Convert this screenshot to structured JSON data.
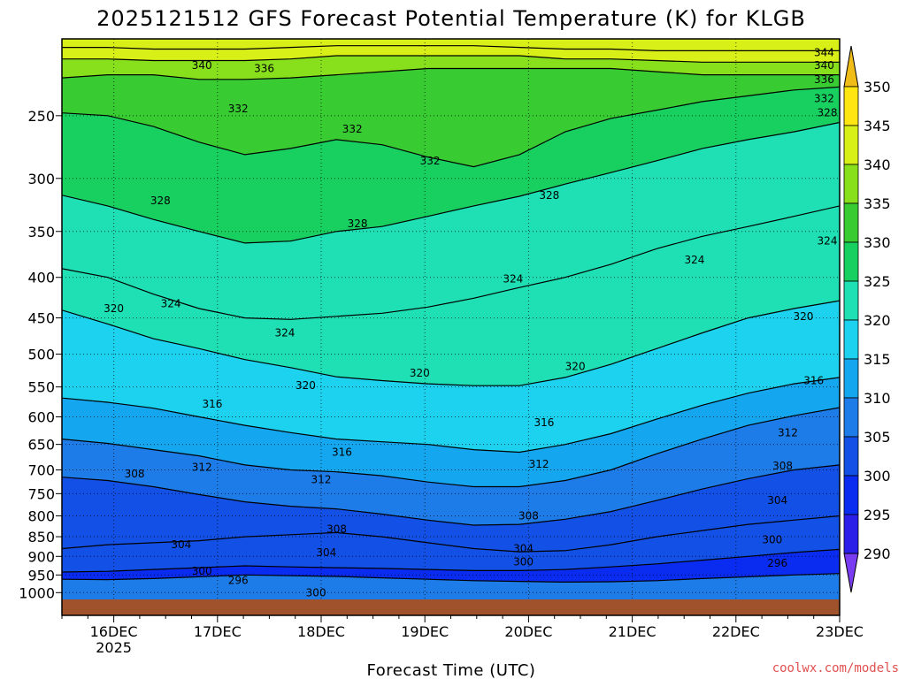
{
  "chart_data": {
    "type": "heatmap",
    "title": "2025121512 GFS Forecast Potential Temperature (K) for KLGB",
    "xlabel": "Forecast Time (UTC)",
    "ylabel": "",
    "x_ticks": [
      "16DEC",
      "17DEC",
      "18DEC",
      "19DEC",
      "20DEC",
      "21DEC",
      "22DEC",
      "23DEC"
    ],
    "x_year_label": "2025",
    "y_ticks": [
      250,
      300,
      350,
      400,
      450,
      500,
      550,
      600,
      650,
      700,
      750,
      800,
      850,
      900,
      950,
      1000
    ],
    "y_scale": "log-pressure",
    "y_range_hPa": [
      1020,
      200
    ],
    "x_range_days": [
      "15DEC 12Z",
      "23DEC 00Z"
    ],
    "grid": "dotted",
    "colorbar": {
      "levels": [
        290,
        295,
        300,
        305,
        310,
        315,
        320,
        325,
        330,
        335,
        340,
        345,
        350
      ],
      "labels": [
        "290",
        "295",
        "300",
        "305",
        "310",
        "315",
        "320",
        "325",
        "330",
        "335",
        "340",
        "345",
        "350"
      ],
      "colors": [
        "#7a3cf0",
        "#2a1ee8",
        "#0a2cf0",
        "#1350e6",
        "#1e7ce8",
        "#14a6ee",
        "#1cd2ee",
        "#1ee0b4",
        "#18d060",
        "#38cc32",
        "#88e01c",
        "#d8f018",
        "#ffe612",
        "#f0bc18"
      ]
    },
    "series": [
      {
        "level": 296,
        "values": [
          962,
          963,
          960,
          955,
          950,
          952,
          954,
          958,
          962,
          966,
          968,
          970,
          969,
          966,
          960,
          955,
          950,
          946
        ]
      },
      {
        "level": 300,
        "values": [
          942,
          940,
          935,
          930,
          925,
          928,
          930,
          932,
          935,
          938,
          938,
          935,
          928,
          920,
          910,
          900,
          890,
          882
        ]
      },
      {
        "level": 304,
        "values": [
          880,
          870,
          865,
          860,
          850,
          845,
          840,
          850,
          865,
          880,
          888,
          885,
          870,
          850,
          835,
          820,
          810,
          800
        ]
      },
      {
        "level": 308,
        "values": [
          715,
          722,
          735,
          752,
          768,
          778,
          784,
          796,
          810,
          822,
          820,
          808,
          790,
          765,
          740,
          718,
          700,
          690
        ]
      },
      {
        "level": 312,
        "values": [
          640,
          648,
          660,
          672,
          690,
          700,
          704,
          712,
          725,
          735,
          735,
          722,
          700,
          668,
          640,
          615,
          598,
          584
        ]
      },
      {
        "level": 316,
        "values": [
          568,
          575,
          585,
          600,
          615,
          628,
          640,
          645,
          650,
          660,
          665,
          650,
          630,
          604,
          580,
          560,
          545,
          535
        ]
      },
      {
        "level": 320,
        "values": [
          440,
          458,
          478,
          492,
          508,
          520,
          534,
          540,
          545,
          548,
          548,
          535,
          515,
          492,
          470,
          450,
          438,
          428
        ]
      },
      {
        "level": 324,
        "values": [
          390,
          400,
          420,
          438,
          450,
          452,
          448,
          444,
          436,
          425,
          412,
          400,
          385,
          368,
          355,
          345,
          335,
          325
        ]
      },
      {
        "level": 328,
        "values": [
          315,
          325,
          338,
          350,
          362,
          360,
          350,
          345,
          335,
          325,
          316,
          305,
          295,
          285,
          275,
          268,
          262,
          255
        ]
      },
      {
        "level": 332,
        "values": [
          248,
          250,
          258,
          270,
          280,
          275,
          268,
          272,
          282,
          290,
          280,
          262,
          252,
          246,
          240,
          236,
          232,
          230
        ]
      },
      {
        "level": 336,
        "values": [
          224,
          222,
          222,
          225,
          225,
          224,
          222,
          220,
          218,
          218,
          218,
          218,
          218,
          220,
          222,
          222,
          222,
          222
        ]
      },
      {
        "level": 340,
        "values": [
          212,
          212,
          213,
          213,
          213,
          212,
          210,
          210,
          210,
          210,
          210,
          212,
          212,
          213,
          214,
          214,
          214,
          214
        ]
      },
      {
        "level": 344,
        "values": [
          205,
          205,
          206,
          206,
          206,
          205,
          204,
          204,
          204,
          204,
          205,
          206,
          206,
          207,
          207,
          207,
          207,
          207
        ]
      }
    ],
    "contour_labels": [
      {
        "text": "340",
        "day": 0.85,
        "p": 216
      },
      {
        "text": "336",
        "day": 1.45,
        "p": 218
      },
      {
        "text": "332",
        "day": 1.2,
        "p": 245
      },
      {
        "text": "332",
        "day": 2.3,
        "p": 260
      },
      {
        "text": "332",
        "day": 3.05,
        "p": 285
      },
      {
        "text": "344",
        "day": 6.85,
        "p": 208
      },
      {
        "text": "340",
        "day": 6.85,
        "p": 216
      },
      {
        "text": "336",
        "day": 6.85,
        "p": 225
      },
      {
        "text": "332",
        "day": 6.85,
        "p": 238
      },
      {
        "text": "328",
        "day": 6.9,
        "p": 248
      },
      {
        "text": "328",
        "day": 0.45,
        "p": 320
      },
      {
        "text": "328",
        "day": 2.35,
        "p": 342
      },
      {
        "text": "328",
        "day": 4.2,
        "p": 315
      },
      {
        "text": "324",
        "day": 7.25,
        "p": 360
      },
      {
        "text": "324",
        "day": 5.6,
        "p": 380
      },
      {
        "text": "324",
        "day": 3.85,
        "p": 402
      },
      {
        "text": "324",
        "day": 0.55,
        "p": 432
      },
      {
        "text": "324",
        "day": 1.65,
        "p": 470
      },
      {
        "text": "320",
        "day": 0.0,
        "p": 438
      },
      {
        "text": "320",
        "day": 6.65,
        "p": 448
      },
      {
        "text": "320",
        "day": 4.45,
        "p": 518
      },
      {
        "text": "320",
        "day": 2.95,
        "p": 528
      },
      {
        "text": "320",
        "day": 1.85,
        "p": 548
      },
      {
        "text": "316",
        "day": 6.75,
        "p": 540
      },
      {
        "text": "316",
        "day": 0.95,
        "p": 578
      },
      {
        "text": "316",
        "day": 4.15,
        "p": 610
      },
      {
        "text": "316",
        "day": 2.2,
        "p": 665
      },
      {
        "text": "312",
        "day": 6.5,
        "p": 628
      },
      {
        "text": "312",
        "day": 0.85,
        "p": 695
      },
      {
        "text": "312",
        "day": 4.1,
        "p": 688
      },
      {
        "text": "312",
        "day": 2.0,
        "p": 720
      },
      {
        "text": "308",
        "day": 6.45,
        "p": 692
      },
      {
        "text": "308",
        "day": 0.2,
        "p": 708
      },
      {
        "text": "308",
        "day": 4.0,
        "p": 800
      },
      {
        "text": "308",
        "day": 2.15,
        "p": 832
      },
      {
        "text": "304",
        "day": 6.4,
        "p": 765
      },
      {
        "text": "304",
        "day": 0.65,
        "p": 870
      },
      {
        "text": "304",
        "day": 3.95,
        "p": 880
      },
      {
        "text": "304",
        "day": 2.05,
        "p": 890
      },
      {
        "text": "300",
        "day": 6.35,
        "p": 858
      },
      {
        "text": "300",
        "day": 0.85,
        "p": 940
      },
      {
        "text": "300",
        "day": 3.95,
        "p": 915
      },
      {
        "text": "300",
        "day": 1.95,
        "p": 1000
      },
      {
        "text": "296",
        "day": 6.4,
        "p": 918
      },
      {
        "text": "296",
        "day": 1.2,
        "p": 965
      }
    ]
  },
  "credit": "coolwx.com/models"
}
